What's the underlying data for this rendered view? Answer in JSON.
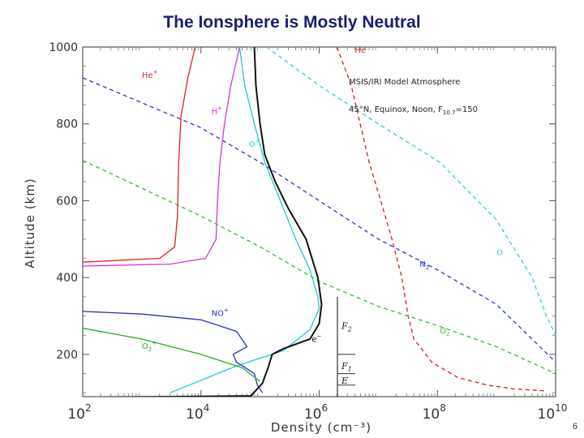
{
  "slide": {
    "title": "The Ionsphere is Mostly Neutral",
    "page_number": "6"
  },
  "chart_data": {
    "type": "line",
    "xlabel": "Density (cm⁻³)",
    "ylabel": "Altitude (km)",
    "xscale": "log",
    "xlim": [
      100,
      10000000000
    ],
    "ylim": [
      90,
      1000
    ],
    "x_tick_labels": [
      {
        "value": 100,
        "base": "10",
        "exp": "2"
      },
      {
        "value": 10000,
        "base": "10",
        "exp": "4"
      },
      {
        "value": 1000000,
        "base": "10",
        "exp": "6"
      },
      {
        "value": 100000000,
        "base": "10",
        "exp": "8"
      },
      {
        "value": 10000000000,
        "base": "10",
        "exp": "10"
      }
    ],
    "y_ticks": [
      200,
      400,
      600,
      800,
      1000
    ],
    "grid": false,
    "annotations": {
      "model_line1": "MSIS/IRI Model Atmosphere",
      "model_line2": "45°N, Equinox, Noon, F",
      "model_sub": "10.7",
      "model_tail": "=150",
      "region_f2": "F",
      "region_f2_sub": "2",
      "region_f1": "F",
      "region_f1_sub": "1",
      "region_e": "E"
    },
    "series": [
      {
        "name": "O",
        "label_base": "O",
        "label_sup": "",
        "label_sub": "",
        "color": "#2fd0d8",
        "dashed": true,
        "label_at": {
          "x": 1000000000.0,
          "y": 458
        },
        "points": [
          [
            130000.0,
            1000
          ],
          [
            1000000.0,
            900
          ],
          [
            10000000.0,
            800
          ],
          [
            110000000.0,
            700
          ],
          [
            1000000000.0,
            550
          ],
          [
            4000000000.0,
            400
          ],
          [
            7000000000.0,
            300
          ],
          [
            10000000000.0,
            250
          ]
        ]
      },
      {
        "name": "He",
        "label_base": "He",
        "label_sup": "",
        "label_sub": "",
        "color": "#d02020",
        "dashed": true,
        "label_at": {
          "x": 4000000.0,
          "y": 985
        },
        "points": [
          [
            2000000.0,
            1000
          ],
          [
            3500000.0,
            900
          ],
          [
            7000000.0,
            700
          ],
          [
            11000000.0,
            600
          ],
          [
            17000000.0,
            500
          ],
          [
            25000000.0,
            400
          ],
          [
            32000000.0,
            300
          ],
          [
            40000000.0,
            240
          ],
          [
            80000000.0,
            180
          ],
          [
            220000000.0,
            140
          ],
          [
            700000000.0,
            120
          ],
          [
            2000000000.0,
            110
          ],
          [
            7000000000.0,
            105
          ]
        ]
      },
      {
        "name": "N2",
        "label_base": "N",
        "label_sup": "",
        "label_sub": "2",
        "color": "#2a3cc0",
        "dashed": true,
        "label_at": {
          "x": 50000000.0,
          "y": 428
        },
        "points": [
          [
            100,
            920
          ],
          [
            10000.0,
            790
          ],
          [
            100000.0,
            700
          ],
          [
            1000000.0,
            600
          ],
          [
            10000000.0,
            500
          ],
          [
            100000000.0,
            420
          ],
          [
            1000000000.0,
            330
          ],
          [
            10000000000.0,
            180
          ]
        ]
      },
      {
        "name": "O2",
        "label_base": "O",
        "label_sup": "",
        "label_sub": "2",
        "color": "#30c030",
        "dashed": true,
        "label_at": {
          "x": 110000000.0,
          "y": 255
        },
        "points": [
          [
            100,
            705
          ],
          [
            10000.0,
            560
          ],
          [
            100000.0,
            480
          ],
          [
            1000000.0,
            390
          ],
          [
            10000000.0,
            325
          ],
          [
            100000000.0,
            275
          ],
          [
            1000000000.0,
            220
          ],
          [
            10000000000.0,
            150
          ]
        ]
      },
      {
        "name": "He+",
        "label_base": "He",
        "label_sup": "+",
        "label_sub": "",
        "color": "#e02020",
        "dashed": false,
        "label_at": {
          "x": 1000.0,
          "y": 920
        },
        "points": [
          [
            8000.0,
            1000
          ],
          [
            6000.0,
            920
          ],
          [
            4600.0,
            820
          ],
          [
            4200.0,
            700
          ],
          [
            4000.0,
            560
          ],
          [
            3600.0,
            480
          ],
          [
            2000.0,
            450
          ],
          [
            100,
            440
          ]
        ]
      },
      {
        "name": "H+",
        "label_base": "H",
        "label_sup": "+",
        "label_sub": "",
        "color": "#e030e0",
        "dashed": false,
        "label_at": {
          "x": 15000.0,
          "y": 826
        },
        "points": [
          [
            45000.0,
            1000
          ],
          [
            32000.0,
            900
          ],
          [
            25000.0,
            800
          ],
          [
            21000.0,
            700
          ],
          [
            19000.0,
            600
          ],
          [
            18000.0,
            500
          ],
          [
            12000.0,
            450
          ],
          [
            3000.0,
            435
          ],
          [
            100,
            430
          ]
        ]
      },
      {
        "name": "O+",
        "label_base": "O",
        "label_sup": "+",
        "label_sub": "",
        "color": "#20c8d8",
        "dashed": false,
        "label_at": {
          "x": 65000.0,
          "y": 740
        },
        "points": [
          [
            45000.0,
            1000
          ],
          [
            55000.0,
            900
          ],
          [
            80000.0,
            800
          ],
          [
            120000.0,
            700
          ],
          [
            220000.0,
            600
          ],
          [
            400000.0,
            500
          ],
          [
            700000.0,
            420
          ],
          [
            950000.0,
            350
          ],
          [
            1000000.0,
            320
          ],
          [
            700000.0,
            265
          ],
          [
            250000.0,
            210
          ],
          [
            40000.0,
            170
          ],
          [
            3000.0,
            100
          ]
        ]
      },
      {
        "name": "NO+",
        "label_base": "NO",
        "label_sup": "+",
        "label_sub": "",
        "color": "#2a30c0",
        "dashed": false,
        "label_at": {
          "x": 15000.0,
          "y": 300
        },
        "points": [
          [
            100,
            312
          ],
          [
            1000.0,
            305
          ],
          [
            10000.0,
            290
          ],
          [
            40000.0,
            260
          ],
          [
            60000.0,
            220
          ],
          [
            35000.0,
            200
          ],
          [
            40000.0,
            180
          ],
          [
            80000.0,
            150
          ],
          [
            90000.0,
            120
          ],
          [
            110000.0,
            100
          ]
        ]
      },
      {
        "name": "O2+",
        "label_base": "O",
        "label_sup": "+",
        "label_sub": "2",
        "color": "#20b020",
        "dashed": false,
        "label_at": {
          "x": 1000.0,
          "y": 215
        },
        "points": [
          [
            100,
            268
          ],
          [
            1000.0,
            240
          ],
          [
            10000.0,
            200
          ],
          [
            50000.0,
            165
          ],
          [
            100000.0,
            130
          ]
        ]
      },
      {
        "name": "e-",
        "label_base": "e",
        "label_sup": "−",
        "label_sub": "",
        "color": "#111111",
        "dashed": false,
        "label_at": {
          "x": 750000.0,
          "y": 232
        },
        "points": [
          [
            80000.0,
            1000
          ],
          [
            85000.0,
            900
          ],
          [
            100000.0,
            800
          ],
          [
            120000.0,
            720
          ],
          [
            180000.0,
            650
          ],
          [
            300000.0,
            580
          ],
          [
            600000.0,
            500
          ],
          [
            950000.0,
            400
          ],
          [
            1100000.0,
            330
          ],
          [
            1000000.0,
            280
          ],
          [
            700000.0,
            240
          ],
          [
            250000.0,
            215
          ],
          [
            160000.0,
            200
          ],
          [
            140000.0,
            170
          ],
          [
            110000.0,
            125
          ],
          [
            70000.0,
            92
          ],
          [
            200,
            88
          ]
        ]
      }
    ]
  }
}
